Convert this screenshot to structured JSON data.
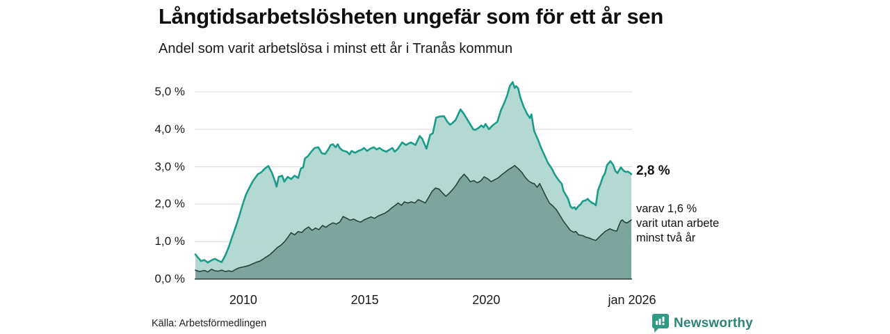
{
  "header": {
    "title": "Långtidsarbetslösheten ungefär som för ett år sen",
    "subtitle": "Andel som varit arbetslösa i minst ett år i Tranås kommun"
  },
  "chart_data": {
    "type": "area",
    "title": "Långtidsarbetslösheten ungefär som för ett år sen",
    "subtitle": "Andel som varit arbetslösa i minst ett år i Tranås kommun",
    "unit": "%",
    "xlim": [
      2008,
      2026
    ],
    "ylim": [
      0,
      5.5
    ],
    "grid": true,
    "yticks": [
      {
        "v": 0,
        "label": "0,0 %"
      },
      {
        "v": 1,
        "label": "1,0 %"
      },
      {
        "v": 2,
        "label": "2,0 %"
      },
      {
        "v": 3,
        "label": "3,0 %"
      },
      {
        "v": 4,
        "label": "4,0 %"
      },
      {
        "v": 5,
        "label": "5,0 %"
      }
    ],
    "xticks": [
      {
        "v": 2010,
        "label": "2010"
      },
      {
        "v": 2015,
        "label": "2015"
      },
      {
        "v": 2020,
        "label": "2020"
      },
      {
        "v": 2026,
        "label": "jan 2026"
      }
    ],
    "gridline_color": "#e0e0e0",
    "axis_color": "#2b3f3a",
    "annotations": {
      "end_value_label": "2,8 %",
      "note": "varav 1,6 %\nvarit utan arbete\nminst två år"
    },
    "series": [
      {
        "name": "arbetslösa minst ett år",
        "latest_value": 2.8,
        "color": "#1a9c8a",
        "fill": "#a8d4cc",
        "fill_opacity": 0.88,
        "stroke_width": 2.6,
        "points": [
          [
            2008.03,
            0.66
          ],
          [
            2008.13,
            0.58
          ],
          [
            2008.26,
            0.48
          ],
          [
            2008.4,
            0.51
          ],
          [
            2008.54,
            0.44
          ],
          [
            2008.69,
            0.5
          ],
          [
            2008.83,
            0.54
          ],
          [
            2008.97,
            0.49
          ],
          [
            2009.11,
            0.45
          ],
          [
            2009.26,
            0.63
          ],
          [
            2009.4,
            0.85
          ],
          [
            2009.54,
            1.12
          ],
          [
            2009.69,
            1.4
          ],
          [
            2009.83,
            1.67
          ],
          [
            2009.97,
            1.98
          ],
          [
            2010.11,
            2.25
          ],
          [
            2010.26,
            2.45
          ],
          [
            2010.4,
            2.62
          ],
          [
            2010.6,
            2.8
          ],
          [
            2010.74,
            2.85
          ],
          [
            2010.89,
            2.95
          ],
          [
            2011.03,
            3.02
          ],
          [
            2011.17,
            2.85
          ],
          [
            2011.31,
            2.6
          ],
          [
            2011.37,
            2.47
          ],
          [
            2011.46,
            2.73
          ],
          [
            2011.6,
            2.76
          ],
          [
            2011.69,
            2.6
          ],
          [
            2011.83,
            2.73
          ],
          [
            2011.97,
            2.67
          ],
          [
            2012.11,
            2.76
          ],
          [
            2012.26,
            2.7
          ],
          [
            2012.37,
            2.95
          ],
          [
            2012.46,
            2.98
          ],
          [
            2012.54,
            3.22
          ],
          [
            2012.66,
            3.28
          ],
          [
            2012.8,
            3.4
          ],
          [
            2012.94,
            3.5
          ],
          [
            2013.09,
            3.52
          ],
          [
            2013.23,
            3.36
          ],
          [
            2013.37,
            3.34
          ],
          [
            2013.49,
            3.45
          ],
          [
            2013.6,
            3.58
          ],
          [
            2013.69,
            3.6
          ],
          [
            2013.8,
            3.52
          ],
          [
            2013.89,
            3.6
          ],
          [
            2013.97,
            3.5
          ],
          [
            2014.09,
            3.43
          ],
          [
            2014.26,
            3.4
          ],
          [
            2014.37,
            3.33
          ],
          [
            2014.46,
            3.42
          ],
          [
            2014.6,
            3.37
          ],
          [
            2014.74,
            3.42
          ],
          [
            2014.86,
            3.45
          ],
          [
            2014.97,
            3.5
          ],
          [
            2015.09,
            3.42
          ],
          [
            2015.23,
            3.48
          ],
          [
            2015.37,
            3.52
          ],
          [
            2015.49,
            3.46
          ],
          [
            2015.6,
            3.5
          ],
          [
            2015.74,
            3.44
          ],
          [
            2015.89,
            3.4
          ],
          [
            2016.03,
            3.46
          ],
          [
            2016.14,
            3.5
          ],
          [
            2016.23,
            3.4
          ],
          [
            2016.34,
            3.46
          ],
          [
            2016.54,
            3.65
          ],
          [
            2016.69,
            3.58
          ],
          [
            2016.89,
            3.65
          ],
          [
            2017.09,
            3.58
          ],
          [
            2017.26,
            3.82
          ],
          [
            2017.37,
            3.74
          ],
          [
            2017.46,
            3.6
          ],
          [
            2017.54,
            3.48
          ],
          [
            2017.69,
            3.85
          ],
          [
            2017.8,
            3.89
          ],
          [
            2017.94,
            4.31
          ],
          [
            2018.09,
            4.34
          ],
          [
            2018.26,
            4.35
          ],
          [
            2018.4,
            4.2
          ],
          [
            2018.51,
            4.12
          ],
          [
            2018.6,
            4.16
          ],
          [
            2018.74,
            4.25
          ],
          [
            2018.94,
            4.53
          ],
          [
            2019.09,
            4.4
          ],
          [
            2019.23,
            4.25
          ],
          [
            2019.37,
            4.1
          ],
          [
            2019.46,
            4.0
          ],
          [
            2019.54,
            3.98
          ],
          [
            2019.69,
            4.04
          ],
          [
            2019.8,
            4.1
          ],
          [
            2019.89,
            4.05
          ],
          [
            2019.97,
            4.14
          ],
          [
            2020.11,
            4.0
          ],
          [
            2020.26,
            4.1
          ],
          [
            2020.46,
            4.2
          ],
          [
            2020.6,
            4.5
          ],
          [
            2020.74,
            4.7
          ],
          [
            2020.86,
            4.9
          ],
          [
            2020.97,
            5.15
          ],
          [
            2021.09,
            5.26
          ],
          [
            2021.17,
            5.1
          ],
          [
            2021.23,
            5.15
          ],
          [
            2021.31,
            5.1
          ],
          [
            2021.4,
            4.85
          ],
          [
            2021.54,
            4.6
          ],
          [
            2021.69,
            4.4
          ],
          [
            2021.8,
            4.3
          ],
          [
            2021.86,
            4.4
          ],
          [
            2021.97,
            3.95
          ],
          [
            2022.11,
            3.75
          ],
          [
            2022.26,
            3.5
          ],
          [
            2022.4,
            3.3
          ],
          [
            2022.54,
            3.1
          ],
          [
            2022.69,
            2.96
          ],
          [
            2022.83,
            2.78
          ],
          [
            2022.97,
            2.65
          ],
          [
            2023.11,
            2.54
          ],
          [
            2023.17,
            2.37
          ],
          [
            2023.26,
            2.26
          ],
          [
            2023.37,
            2.14
          ],
          [
            2023.46,
            1.95
          ],
          [
            2023.54,
            1.89
          ],
          [
            2023.63,
            1.92
          ],
          [
            2023.69,
            1.86
          ],
          [
            2023.8,
            1.95
          ],
          [
            2023.89,
            2.0
          ],
          [
            2023.97,
            2.08
          ],
          [
            2024.09,
            2.1
          ],
          [
            2024.17,
            2.14
          ],
          [
            2024.26,
            2.08
          ],
          [
            2024.37,
            2.03
          ],
          [
            2024.46,
            2.0
          ],
          [
            2024.51,
            1.97
          ],
          [
            2024.6,
            2.37
          ],
          [
            2024.69,
            2.52
          ],
          [
            2024.8,
            2.73
          ],
          [
            2024.89,
            2.83
          ],
          [
            2024.97,
            3.04
          ],
          [
            2025.09,
            3.13
          ],
          [
            2025.11,
            3.15
          ],
          [
            2025.23,
            3.04
          ],
          [
            2025.31,
            2.89
          ],
          [
            2025.4,
            2.83
          ],
          [
            2025.51,
            2.95
          ],
          [
            2025.54,
            2.98
          ],
          [
            2025.66,
            2.89
          ],
          [
            2025.74,
            2.86
          ],
          [
            2025.83,
            2.87
          ],
          [
            2025.97,
            2.8
          ]
        ]
      },
      {
        "name": "varav utan arbete minst två år",
        "latest_value": 1.6,
        "color": "#25443c",
        "fill": "#77a199",
        "fill_opacity": 0.92,
        "stroke_width": 1.6,
        "points": [
          [
            2008.03,
            0.24
          ],
          [
            2008.2,
            0.2
          ],
          [
            2008.4,
            0.23
          ],
          [
            2008.54,
            0.19
          ],
          [
            2008.69,
            0.26
          ],
          [
            2008.83,
            0.22
          ],
          [
            2008.97,
            0.21
          ],
          [
            2009.11,
            0.24
          ],
          [
            2009.26,
            0.2
          ],
          [
            2009.4,
            0.22
          ],
          [
            2009.54,
            0.2
          ],
          [
            2009.69,
            0.26
          ],
          [
            2009.83,
            0.3
          ],
          [
            2009.97,
            0.32
          ],
          [
            2010.11,
            0.34
          ],
          [
            2010.26,
            0.37
          ],
          [
            2010.4,
            0.41
          ],
          [
            2010.54,
            0.45
          ],
          [
            2010.69,
            0.48
          ],
          [
            2010.83,
            0.54
          ],
          [
            2010.97,
            0.6
          ],
          [
            2011.11,
            0.66
          ],
          [
            2011.26,
            0.75
          ],
          [
            2011.4,
            0.84
          ],
          [
            2011.54,
            0.9
          ],
          [
            2011.69,
            0.99
          ],
          [
            2011.83,
            1.11
          ],
          [
            2011.97,
            1.24
          ],
          [
            2012.11,
            1.18
          ],
          [
            2012.26,
            1.27
          ],
          [
            2012.4,
            1.24
          ],
          [
            2012.54,
            1.33
          ],
          [
            2012.69,
            1.39
          ],
          [
            2012.83,
            1.3
          ],
          [
            2012.97,
            1.36
          ],
          [
            2013.11,
            1.32
          ],
          [
            2013.26,
            1.43
          ],
          [
            2013.4,
            1.38
          ],
          [
            2013.54,
            1.45
          ],
          [
            2013.69,
            1.5
          ],
          [
            2013.83,
            1.47
          ],
          [
            2013.97,
            1.52
          ],
          [
            2014.11,
            1.67
          ],
          [
            2014.26,
            1.62
          ],
          [
            2014.4,
            1.57
          ],
          [
            2014.54,
            1.6
          ],
          [
            2014.69,
            1.55
          ],
          [
            2014.83,
            1.52
          ],
          [
            2014.97,
            1.58
          ],
          [
            2015.11,
            1.62
          ],
          [
            2015.26,
            1.66
          ],
          [
            2015.4,
            1.62
          ],
          [
            2015.54,
            1.68
          ],
          [
            2015.69,
            1.72
          ],
          [
            2015.83,
            1.76
          ],
          [
            2015.97,
            1.82
          ],
          [
            2016.11,
            1.9
          ],
          [
            2016.26,
            1.97
          ],
          [
            2016.37,
            2.03
          ],
          [
            2016.51,
            1.97
          ],
          [
            2016.63,
            2.06
          ],
          [
            2016.77,
            2.03
          ],
          [
            2016.91,
            2.06
          ],
          [
            2017.06,
            2.03
          ],
          [
            2017.2,
            2.12
          ],
          [
            2017.34,
            2.08
          ],
          [
            2017.49,
            2.03
          ],
          [
            2017.63,
            2.18
          ],
          [
            2017.77,
            2.34
          ],
          [
            2017.91,
            2.43
          ],
          [
            2018.06,
            2.4
          ],
          [
            2018.2,
            2.3
          ],
          [
            2018.34,
            2.21
          ],
          [
            2018.49,
            2.3
          ],
          [
            2018.63,
            2.4
          ],
          [
            2018.77,
            2.52
          ],
          [
            2018.91,
            2.67
          ],
          [
            2019.09,
            2.8
          ],
          [
            2019.23,
            2.7
          ],
          [
            2019.34,
            2.6
          ],
          [
            2019.49,
            2.63
          ],
          [
            2019.63,
            2.57
          ],
          [
            2019.77,
            2.62
          ],
          [
            2019.91,
            2.73
          ],
          [
            2020.06,
            2.68
          ],
          [
            2020.2,
            2.6
          ],
          [
            2020.34,
            2.65
          ],
          [
            2020.49,
            2.7
          ],
          [
            2020.63,
            2.78
          ],
          [
            2020.77,
            2.85
          ],
          [
            2020.91,
            2.92
          ],
          [
            2021.06,
            2.98
          ],
          [
            2021.17,
            3.03
          ],
          [
            2021.31,
            2.95
          ],
          [
            2021.46,
            2.85
          ],
          [
            2021.6,
            2.72
          ],
          [
            2021.74,
            2.62
          ],
          [
            2021.89,
            2.56
          ],
          [
            2021.97,
            2.55
          ],
          [
            2022.09,
            2.45
          ],
          [
            2022.2,
            2.55
          ],
          [
            2022.31,
            2.4
          ],
          [
            2022.46,
            2.2
          ],
          [
            2022.6,
            2.03
          ],
          [
            2022.74,
            1.95
          ],
          [
            2022.89,
            1.85
          ],
          [
            2023.03,
            1.7
          ],
          [
            2023.17,
            1.55
          ],
          [
            2023.31,
            1.43
          ],
          [
            2023.46,
            1.3
          ],
          [
            2023.6,
            1.25
          ],
          [
            2023.69,
            1.27
          ],
          [
            2023.8,
            1.18
          ],
          [
            2023.97,
            1.16
          ],
          [
            2024.09,
            1.12
          ],
          [
            2024.26,
            1.09
          ],
          [
            2024.37,
            1.06
          ],
          [
            2024.51,
            1.03
          ],
          [
            2024.6,
            1.09
          ],
          [
            2024.74,
            1.18
          ],
          [
            2024.89,
            1.27
          ],
          [
            2024.97,
            1.3
          ],
          [
            2025.09,
            1.34
          ],
          [
            2025.23,
            1.3
          ],
          [
            2025.37,
            1.28
          ],
          [
            2025.46,
            1.43
          ],
          [
            2025.54,
            1.55
          ],
          [
            2025.6,
            1.58
          ],
          [
            2025.69,
            1.52
          ],
          [
            2025.8,
            1.5
          ],
          [
            2025.97,
            1.58
          ]
        ]
      }
    ]
  },
  "footer": {
    "source": "Källa: Arbetsförmedlingen",
    "brand": "Newsworthy",
    "brand_color": "#2e8577",
    "brand_icon_color": "#319a86"
  }
}
